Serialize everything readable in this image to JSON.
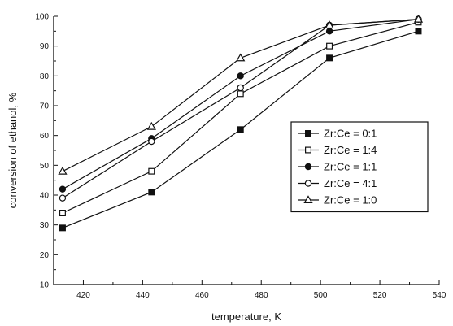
{
  "chart_data": {
    "type": "line",
    "title": "",
    "xlabel": "temperature, K",
    "ylabel": "conversion of ethanol, %",
    "xlim": [
      410,
      540
    ],
    "ylim": [
      10,
      100
    ],
    "xticks": [
      420,
      440,
      460,
      480,
      500,
      520,
      540
    ],
    "yticks": [
      10,
      20,
      30,
      40,
      50,
      60,
      70,
      80,
      90,
      100
    ],
    "grid": false,
    "legend_position": "center-right",
    "x": [
      413,
      443,
      473,
      503,
      533
    ],
    "series": [
      {
        "name": "Zr:Ce = 0:1",
        "marker": "filled-square",
        "values": [
          29,
          41,
          62,
          86,
          95
        ]
      },
      {
        "name": "Zr:Ce = 1:4",
        "marker": "open-square",
        "values": [
          34,
          48,
          74,
          90,
          98
        ]
      },
      {
        "name": "Zr:Ce = 1:1",
        "marker": "filled-circle",
        "values": [
          42,
          59,
          80,
          95,
          99
        ]
      },
      {
        "name": "Zr:Ce = 4:1",
        "marker": "open-circle",
        "values": [
          39,
          58,
          76,
          97,
          99
        ]
      },
      {
        "name": "Zr:Ce = 1:0",
        "marker": "open-triangle",
        "values": [
          48,
          63,
          86,
          97,
          99
        ]
      }
    ]
  }
}
